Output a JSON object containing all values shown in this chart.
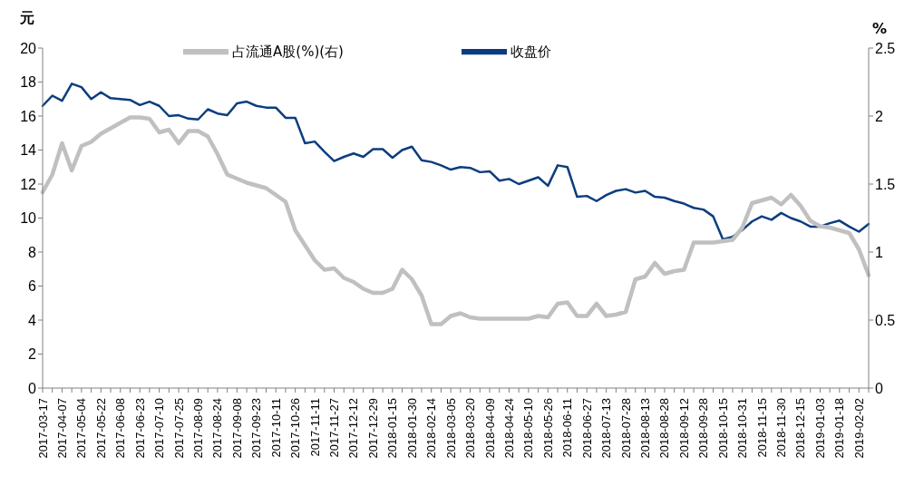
{
  "chart_data": {
    "type": "line",
    "ylabel": "元",
    "y2label": "%",
    "legend": "top",
    "marker": "none",
    "line_style": "solid",
    "categories": [
      "2017-03-17",
      null,
      "2017-04-07",
      null,
      "2017-05-04",
      null,
      "2017-05-22",
      null,
      "2017-06-08",
      null,
      "2017-06-23",
      null,
      "2017-07-10",
      null,
      "2017-07-25",
      null,
      "2017-08-09",
      null,
      "2017-08-24",
      null,
      "2017-09-08",
      null,
      "2017-09-23",
      null,
      "2017-10-11",
      null,
      "2017-10-26",
      null,
      "2017-11-11",
      null,
      "2017-11-27",
      null,
      "2017-12-12",
      null,
      "2017-12-29",
      null,
      "2018-01-15",
      null,
      "2018-01-30",
      null,
      "2018-02-14",
      null,
      "2018-03-05",
      null,
      "2018-03-20",
      null,
      "2018-04-09",
      null,
      "2018-04-24",
      null,
      "2018-05-10",
      null,
      "2018-05-26",
      null,
      "2018-06-11",
      null,
      "2018-06-27",
      null,
      "2018-07-13",
      null,
      "2018-07-28",
      null,
      "2018-08-13",
      null,
      "2018-08-28",
      null,
      "2018-09-12",
      null,
      "2018-09-28",
      null,
      "2018-10-15",
      null,
      "2018-10-31",
      null,
      "2018-11-15",
      null,
      "2018-11-30",
      null,
      "2018-12-15",
      null,
      "2019-01-03",
      null,
      "2019-01-18",
      null,
      "2019-02-02",
      null
    ],
    "ylim": [
      0,
      20
    ],
    "yticks": [
      0,
      2,
      4,
      6,
      8,
      10,
      12,
      14,
      16,
      18,
      20
    ],
    "y2lim": [
      0,
      2.5
    ],
    "y2ticks": [
      0,
      0.5,
      1,
      1.5,
      2,
      2.5
    ],
    "series": [
      {
        "name": "收盘价",
        "color": "#0b3d7e",
        "values": [
          16.6,
          17.2,
          16.9,
          17.9,
          17.7,
          17.0,
          17.4,
          17.05,
          17.0,
          16.95,
          16.65,
          16.85,
          16.6,
          16.0,
          16.05,
          15.85,
          15.8,
          16.4,
          16.15,
          16.05,
          16.75,
          16.85,
          16.6,
          16.5,
          16.5,
          15.9,
          15.9,
          14.4,
          14.5,
          13.9,
          13.35,
          13.6,
          13.8,
          13.6,
          14.05,
          14.05,
          13.55,
          14.0,
          14.2,
          13.4,
          13.3,
          13.1,
          12.85,
          13.0,
          12.95,
          12.7,
          12.75,
          12.2,
          12.3,
          12.0,
          12.2,
          12.4,
          11.9,
          13.1,
          13.0,
          11.25,
          11.3,
          11.0,
          11.35,
          11.6,
          11.7,
          11.5,
          11.6,
          11.25,
          11.2,
          11.0,
          10.85,
          10.6,
          10.5,
          10.1,
          8.75,
          8.9,
          9.3,
          9.8,
          10.1,
          9.9,
          10.3,
          10.0,
          9.8,
          9.5,
          9.5,
          9.7,
          9.85,
          9.5,
          9.2,
          9.65
        ]
      },
      {
        "name": "占流通A股(%)(右)",
        "color": "#c0c0c0",
        "axis": "y2",
        "values": [
          1.44,
          1.57,
          1.8,
          1.6,
          1.78,
          1.81,
          1.87,
          1.91,
          1.95,
          1.99,
          1.99,
          1.98,
          1.88,
          1.9,
          1.8,
          1.89,
          1.89,
          1.85,
          1.72,
          1.57,
          1.54,
          1.51,
          1.49,
          1.47,
          1.42,
          1.37,
          1.16,
          1.05,
          0.94,
          0.87,
          0.88,
          0.81,
          0.78,
          0.73,
          0.7,
          0.7,
          0.73,
          0.87,
          0.8,
          0.68,
          0.47,
          0.47,
          0.53,
          0.55,
          0.52,
          0.51,
          0.51,
          0.51,
          0.51,
          0.51,
          0.51,
          0.53,
          0.52,
          0.62,
          0.63,
          0.53,
          0.53,
          0.62,
          0.53,
          0.54,
          0.56,
          0.8,
          0.82,
          0.92,
          0.84,
          0.86,
          0.87,
          1.07,
          1.07,
          1.07,
          1.08,
          1.09,
          1.18,
          1.36,
          1.38,
          1.4,
          1.35,
          1.42,
          1.34,
          1.23,
          1.19,
          1.18,
          1.16,
          1.14,
          1.02,
          0.83
        ]
      }
    ]
  }
}
